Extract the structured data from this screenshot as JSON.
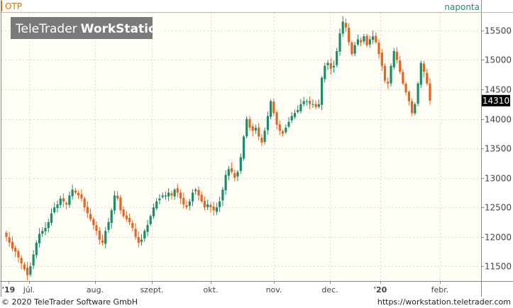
{
  "symbol": "OTP",
  "interval": "naponta",
  "watermark": {
    "brand": "TeleTrader",
    "product": "WorkStation"
  },
  "last_price_label": "14310",
  "footer": {
    "copyright": "© 2020 TeleTrader Software GmbH",
    "url": "https://workstation.teletrader.com"
  },
  "colors": {
    "up": "#1e8c6a",
    "down": "#e8641e",
    "symbol_text": "#d4780a",
    "interval_text": "#1e8c6a",
    "plot_bg": "#fffef5",
    "grid": "#d9d9d9"
  },
  "chart_data": {
    "type": "candlestick",
    "ylim": [
      11250,
      15800
    ],
    "y_ticks": [
      11500,
      12000,
      12500,
      13000,
      13500,
      14000,
      14500,
      15000,
      15500
    ],
    "y_tick_labels": [
      "11500",
      "12000",
      "12500",
      "13000",
      "13500",
      "14000",
      "14500",
      "15000",
      "15500"
    ],
    "x_tick_labels": [
      {
        "label": "'19",
        "bold": true
      },
      {
        "label": "júl.",
        "bold": false
      },
      {
        "label": "aug.",
        "bold": false
      },
      {
        "label": "szept.",
        "bold": false
      },
      {
        "label": "okt.",
        "bold": false
      },
      {
        "label": "nov.",
        "bold": false
      },
      {
        "label": "dec.",
        "bold": false
      },
      {
        "label": "'20",
        "bold": true
      },
      {
        "label": "febr.",
        "bold": false
      }
    ],
    "last_value": 14310,
    "grid": true,
    "close_series": [
      12000,
      11900,
      11800,
      11750,
      11650,
      11550,
      11450,
      11350,
      11500,
      11700,
      11900,
      12050,
      12100,
      12150,
      12250,
      12400,
      12500,
      12550,
      12650,
      12600,
      12550,
      12700,
      12800,
      12750,
      12700,
      12650,
      12500,
      12400,
      12300,
      12200,
      12100,
      11950,
      11900,
      12100,
      12250,
      12450,
      12700,
      12650,
      12450,
      12350,
      12300,
      12250,
      12150,
      12000,
      11900,
      11950,
      12100,
      12200,
      12350,
      12500,
      12600,
      12650,
      12700,
      12700,
      12750,
      12700,
      12800,
      12750,
      12650,
      12550,
      12500,
      12600,
      12750,
      12800,
      12700,
      12600,
      12500,
      12550,
      12500,
      12450,
      12500,
      12600,
      12800,
      13050,
      13150,
      13100,
      13000,
      13100,
      13350,
      13700,
      14000,
      13850,
      13800,
      13850,
      13700,
      13600,
      13800,
      14050,
      14300,
      14100,
      13900,
      13800,
      13750,
      13850,
      13950,
      14050,
      14100,
      14150,
      14250,
      14300,
      14300,
      14250,
      14250,
      14200,
      14250,
      14700,
      14900,
      14950,
      14850,
      14900,
      15150,
      15450,
      15650,
      15550,
      15300,
      15100,
      15250,
      15350,
      15300,
      15400,
      15250,
      15350,
      15400,
      15300,
      15100,
      14900,
      14650,
      14600,
      14900,
      15150,
      15000,
      14800,
      14600,
      14450,
      14300,
      14100,
      14250,
      14600,
      14950,
      14800,
      14600,
      14310
    ]
  }
}
